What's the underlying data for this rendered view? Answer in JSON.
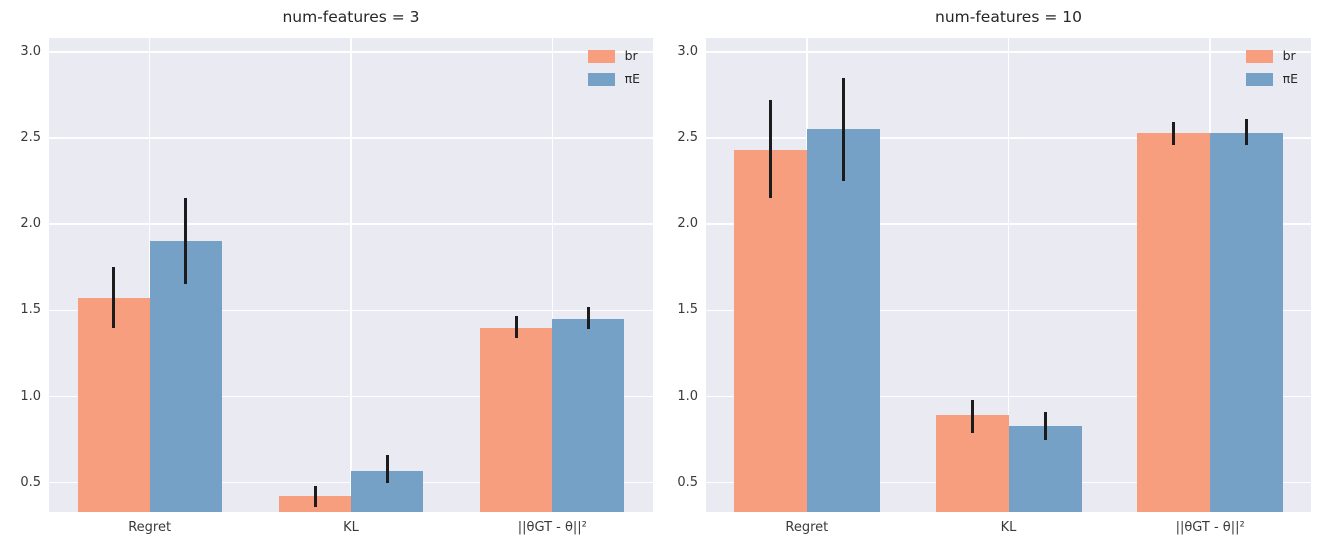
{
  "figure": {
    "background": "#ffffff",
    "plot_background": "#eaeaf2",
    "grid_color": "#ffffff",
    "text_color": "#3a3a3a",
    "title_color": "#262626",
    "errorbar_color": "#1c1c1c"
  },
  "chart_data": [
    {
      "type": "bar",
      "title": "num-features = 3",
      "xlabel": "",
      "ylabel": "",
      "categories": [
        "Regret",
        "KL",
        "||θGT - θ||²"
      ],
      "yticks": [
        0.5,
        1.0,
        1.5,
        2.0,
        2.5,
        3.0
      ],
      "ytick_labels": [
        "0.5",
        "1.0",
        "1.5",
        "2.0",
        "2.5",
        "3.0"
      ],
      "ylim": [
        0.33,
        3.08
      ],
      "grid": true,
      "legend_position": "upper right",
      "series": [
        {
          "name": "br",
          "color": "#f79e7f",
          "values": [
            1.57,
            0.42,
            1.4
          ],
          "err_low": [
            1.4,
            0.36,
            1.34
          ],
          "err_high": [
            1.75,
            0.48,
            1.47
          ]
        },
        {
          "name": "πE",
          "color": "#75a1c6",
          "values": [
            1.9,
            0.57,
            1.45
          ],
          "err_low": [
            1.65,
            0.5,
            1.39
          ],
          "err_high": [
            2.15,
            0.66,
            1.52
          ]
        }
      ]
    },
    {
      "type": "bar",
      "title": "num-features = 10",
      "xlabel": "",
      "ylabel": "",
      "categories": [
        "Regret",
        "KL",
        "||θGT - θ||²"
      ],
      "yticks": [
        0.5,
        1.0,
        1.5,
        2.0,
        2.5,
        3.0
      ],
      "ytick_labels": [
        "0.5",
        "1.0",
        "1.5",
        "2.0",
        "2.5",
        "3.0"
      ],
      "ylim": [
        0.33,
        3.08
      ],
      "grid": true,
      "legend_position": "upper right",
      "series": [
        {
          "name": "br",
          "color": "#f79e7f",
          "values": [
            2.43,
            0.89,
            2.53
          ],
          "err_low": [
            2.15,
            0.79,
            2.46
          ],
          "err_high": [
            2.72,
            0.98,
            2.59
          ]
        },
        {
          "name": "πE",
          "color": "#75a1c6",
          "values": [
            2.55,
            0.83,
            2.53
          ],
          "err_low": [
            2.25,
            0.75,
            2.46
          ],
          "err_high": [
            2.85,
            0.91,
            2.61
          ]
        }
      ]
    }
  ]
}
